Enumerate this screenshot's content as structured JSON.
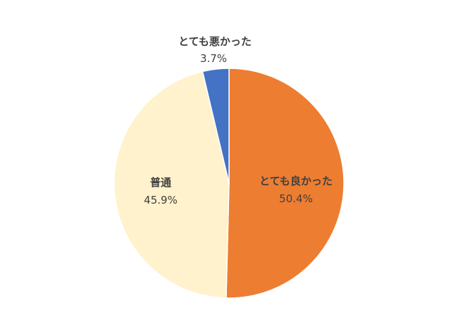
{
  "chart_data": {
    "type": "pie",
    "title": "",
    "slices": [
      {
        "label": "とても良かった",
        "value": 50.4,
        "value_label": "50.4%",
        "color": "#ED7D31"
      },
      {
        "label": "普通",
        "value": 45.9,
        "value_label": "45.9%",
        "color": "#FFF2CC"
      },
      {
        "label": "とても悪かった",
        "value": 3.7,
        "value_label": "3.7%",
        "color": "#4472C4"
      }
    ],
    "start_angle": "12 o'clock",
    "direction": "clockwise",
    "legend": "none"
  }
}
